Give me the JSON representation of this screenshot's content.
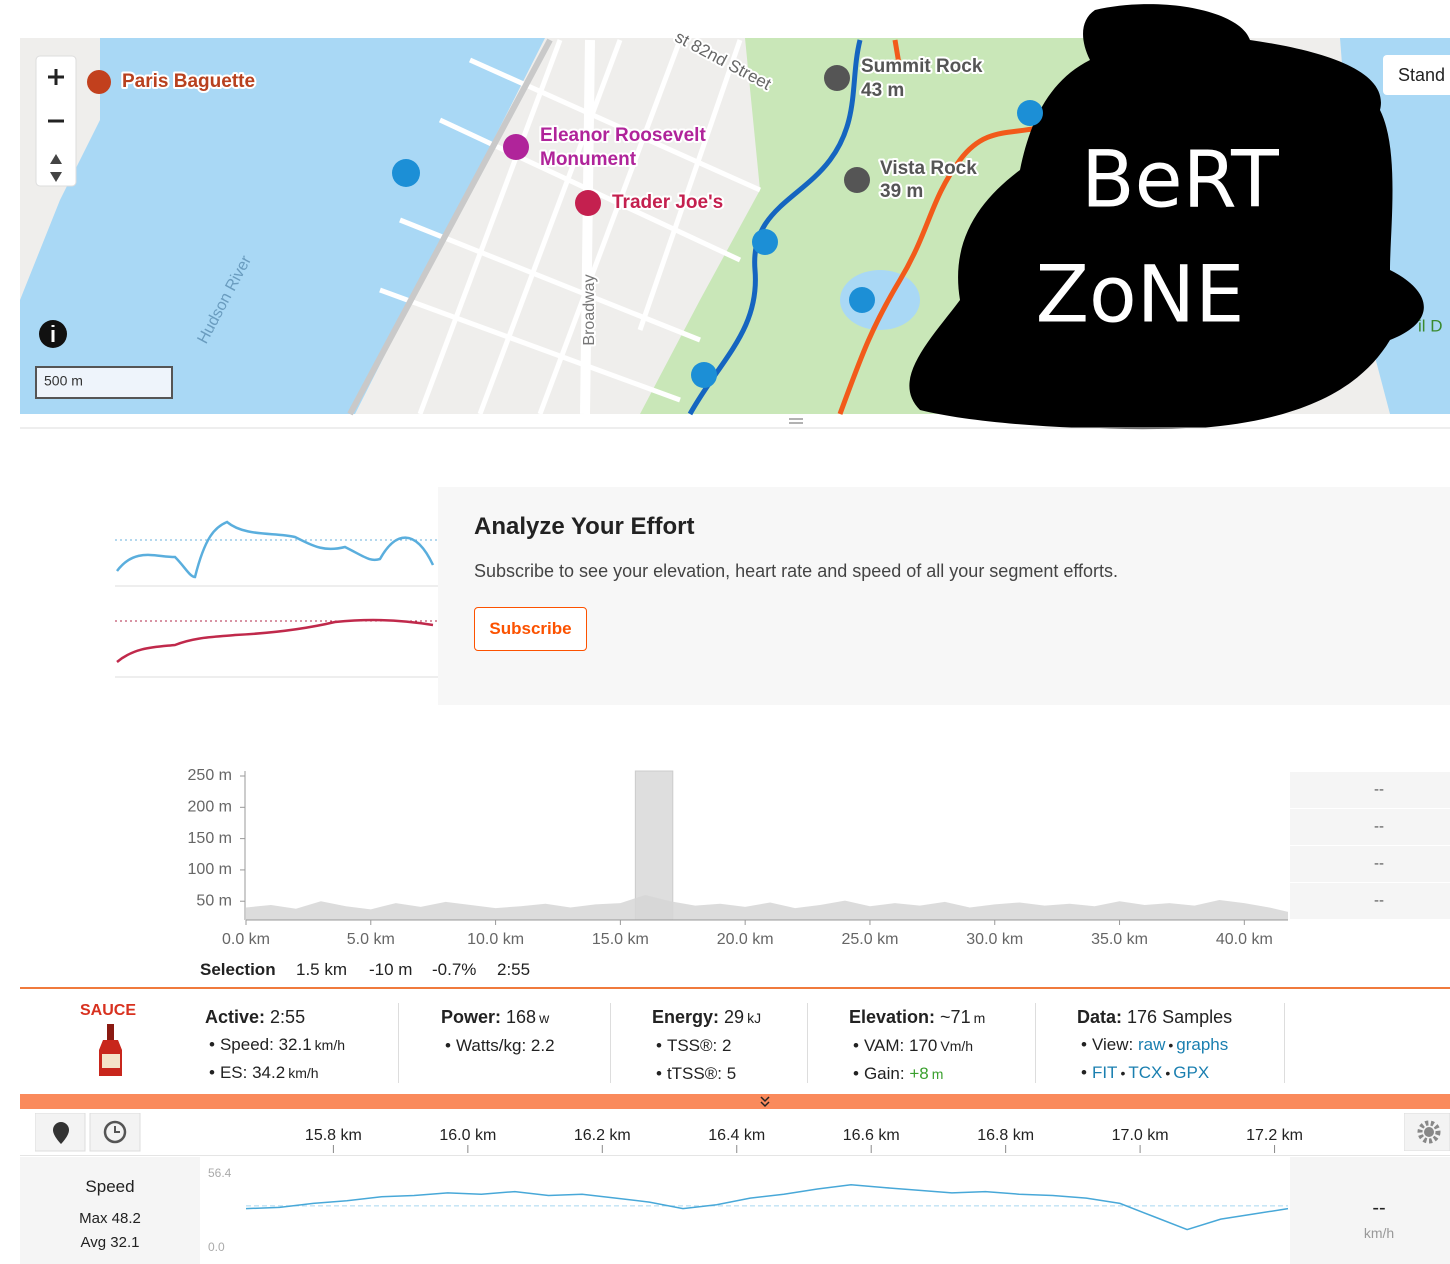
{
  "map": {
    "labels": {
      "paris_baguette": "Paris Baguette",
      "eleanor_1": "Eleanor Roosevelt",
      "eleanor_2": "Monument",
      "trader_joes": "Trader Joe's",
      "street": "st 82nd Street",
      "summit_rock": "Summit Rock",
      "summit_elev": "43 m",
      "vista_rock": "Vista Rock",
      "vista_elev": "39 m",
      "hudson": "Hudson River",
      "broadway": "Broadway",
      "edge": "il D"
    },
    "style_button": "Stand",
    "scale": "500 m",
    "scribble": [
      "BeRT",
      "ZoNE"
    ]
  },
  "upsell": {
    "title": "Analyze Your Effort",
    "body": "Subscribe to see your elevation, heart rate and speed of all your segment efforts.",
    "button": "Subscribe"
  },
  "elevation_chart": {
    "type": "area",
    "x": [
      0,
      1,
      2,
      3,
      4,
      5,
      6,
      7,
      8,
      9,
      10,
      11,
      12,
      13,
      14,
      15,
      16,
      17,
      18,
      19,
      20,
      21,
      22,
      23,
      24,
      25,
      26,
      27,
      28,
      29,
      30,
      31,
      32,
      33,
      34,
      35,
      36,
      37,
      38,
      39,
      40,
      41,
      41.75
    ],
    "values": [
      40,
      44,
      38,
      50,
      42,
      37,
      47,
      41,
      49,
      44,
      39,
      42,
      46,
      40,
      45,
      47,
      60,
      50,
      43,
      46,
      41,
      48,
      39,
      44,
      51,
      42,
      47,
      43,
      49,
      40,
      45,
      48,
      43,
      46,
      42,
      50,
      44,
      47,
      43,
      52,
      47,
      40,
      33
    ],
    "color": "#d6d6d6",
    "xlim": [
      0,
      41.75
    ],
    "ylim": [
      20,
      258
    ],
    "xticks": [
      {
        "value": 0,
        "label": "0.0 km"
      },
      {
        "value": 5,
        "label": "5.0 km"
      },
      {
        "value": 10,
        "label": "10.0 km"
      },
      {
        "value": 15,
        "label": "15.0 km"
      },
      {
        "value": 20,
        "label": "20.0 km"
      },
      {
        "value": 25,
        "label": "25.0 km"
      },
      {
        "value": 30,
        "label": "30.0 km"
      },
      {
        "value": 35,
        "label": "35.0 km"
      },
      {
        "value": 40,
        "label": "40.0 km"
      }
    ],
    "yticks": [
      {
        "value": 50,
        "label": "50 m"
      },
      {
        "value": 100,
        "label": "100 m"
      },
      {
        "value": 150,
        "label": "150 m"
      },
      {
        "value": 200,
        "label": "200 m"
      },
      {
        "value": 250,
        "label": "250 m"
      }
    ],
    "selection": [
      15.6,
      17.1
    ],
    "side_values": [
      "--",
      "--",
      "--",
      "--"
    ]
  },
  "selection_row": {
    "label": "Selection",
    "values": [
      "1.5 km",
      "-10 m",
      "-0.7%",
      "2:55"
    ]
  },
  "sauce": {
    "brand": "SAUCE",
    "separator": "•",
    "groups": [
      {
        "label": "Active:",
        "value": "2:55",
        "rows": [
          {
            "label": "Speed:",
            "value": "32.1",
            "unit": "km/h"
          },
          {
            "label": "ES:",
            "value": "34.2",
            "unit": "km/h"
          }
        ]
      },
      {
        "label": "Power:",
        "value": "168",
        "unit": "w",
        "rows": [
          {
            "label": "Watts/kg:",
            "value": "2.2"
          }
        ]
      },
      {
        "label": "Energy:",
        "value": "29",
        "unit": "kJ",
        "rows": [
          {
            "label": "TSS®:",
            "value": "2"
          },
          {
            "label": "tTSS®:",
            "value": "5"
          }
        ]
      },
      {
        "label": "Elevation:",
        "value": "~71",
        "unit": "m",
        "rows": [
          {
            "label": "VAM:",
            "value": "170",
            "unit": "Vm/h"
          },
          {
            "label": "Gain:",
            "value": "+8",
            "unit": "m",
            "color": "#3aa02e"
          }
        ]
      },
      {
        "label": "Data:",
        "value": "176 Samples",
        "rows": [
          {
            "label": "View:",
            "links": [
              "raw",
              "graphs"
            ]
          },
          {
            "links": [
              "FIT",
              "TCX",
              "GPX"
            ]
          }
        ]
      }
    ]
  },
  "speed_chart": {
    "type": "line",
    "name": "Speed",
    "color": "#48a8d8",
    "stats": [
      {
        "label": "Max",
        "value": 48.2
      },
      {
        "label": "Avg",
        "value": 32.1
      }
    ],
    "x": [
      15.67,
      15.72,
      15.77,
      15.82,
      15.87,
      15.92,
      15.97,
      16.02,
      16.07,
      16.12,
      16.17,
      16.22,
      16.27,
      16.32,
      16.37,
      16.42,
      16.47,
      16.52,
      16.57,
      16.62,
      16.67,
      16.72,
      16.77,
      16.82,
      16.87,
      16.92,
      16.97,
      17.02,
      17.07,
      17.12,
      17.17,
      17.22
    ],
    "values": [
      30,
      31,
      34,
      36,
      39,
      40,
      42,
      41,
      43,
      40,
      41,
      38,
      35,
      30,
      33,
      38,
      41,
      45,
      48.2,
      46,
      44,
      42,
      43,
      41,
      40,
      38,
      34,
      24,
      14,
      22,
      26,
      30
    ],
    "xlim": [
      15.67,
      17.22
    ],
    "ylim": [
      0,
      56.4
    ],
    "xticks": [
      {
        "value": 15.8,
        "label": "15.8 km"
      },
      {
        "value": 16.0,
        "label": "16.0 km"
      },
      {
        "value": 16.2,
        "label": "16.2 km"
      },
      {
        "value": 16.4,
        "label": "16.4 km"
      },
      {
        "value": 16.6,
        "label": "16.6 km"
      },
      {
        "value": 16.8,
        "label": "16.8 km"
      },
      {
        "value": 17.0,
        "label": "17.0 km"
      },
      {
        "value": 17.2,
        "label": "17.2 km"
      }
    ],
    "yticks": [
      {
        "value": 0,
        "label": "0.0"
      },
      56.4
    ],
    "current": "--",
    "unit": "km/h"
  }
}
